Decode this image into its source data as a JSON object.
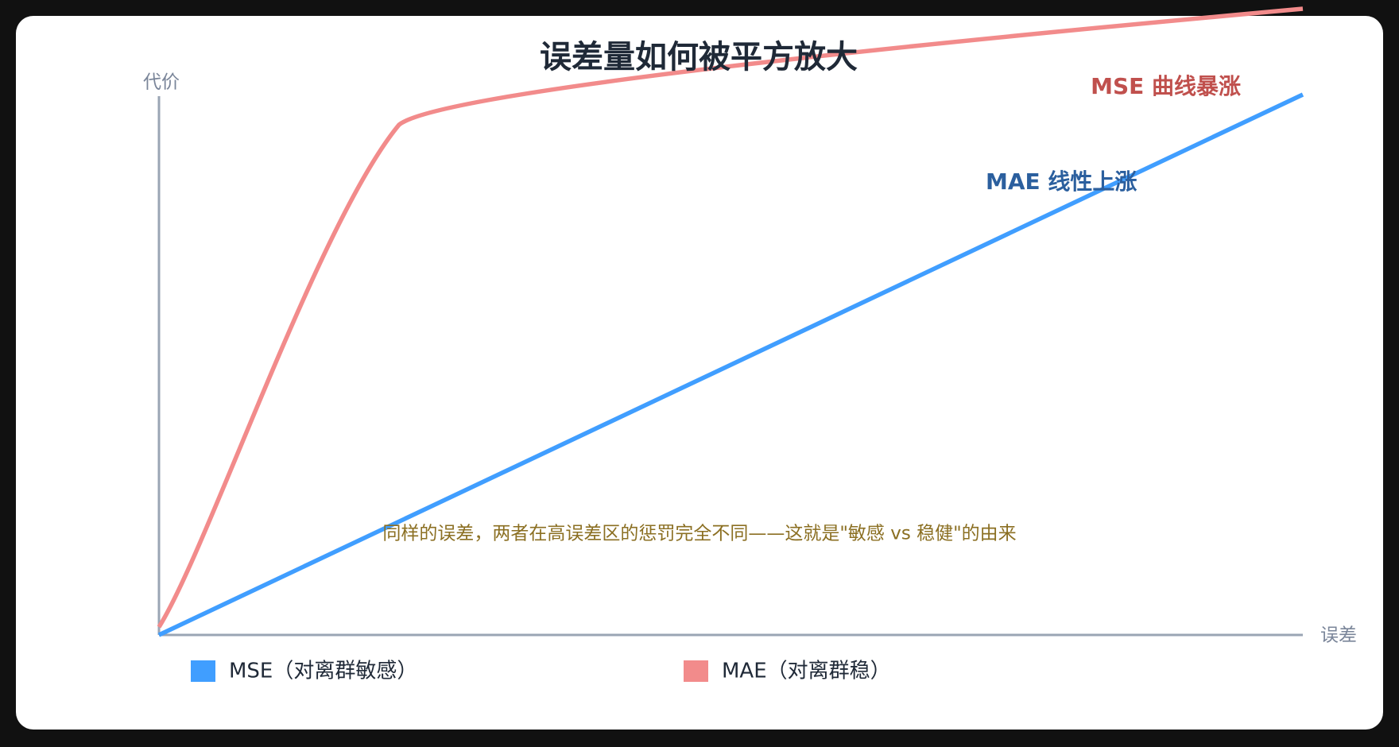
{
  "title": "误差量如何被平方放大",
  "y_axis_label": "代价",
  "x_axis_label": "误差",
  "annotations": {
    "mse": "MSE 曲线暴涨",
    "mae": "MAE 线性上涨",
    "note": "同样的误差，两者在高误差区的惩罚完全不同——这就是\"敏感 vs 稳健\"的由来"
  },
  "legend": [
    {
      "label": "MSE（对离群敏感）",
      "color": "#409eff"
    },
    {
      "label": "MAE（对离群稳）",
      "color": "#f28b8b"
    }
  ]
}
